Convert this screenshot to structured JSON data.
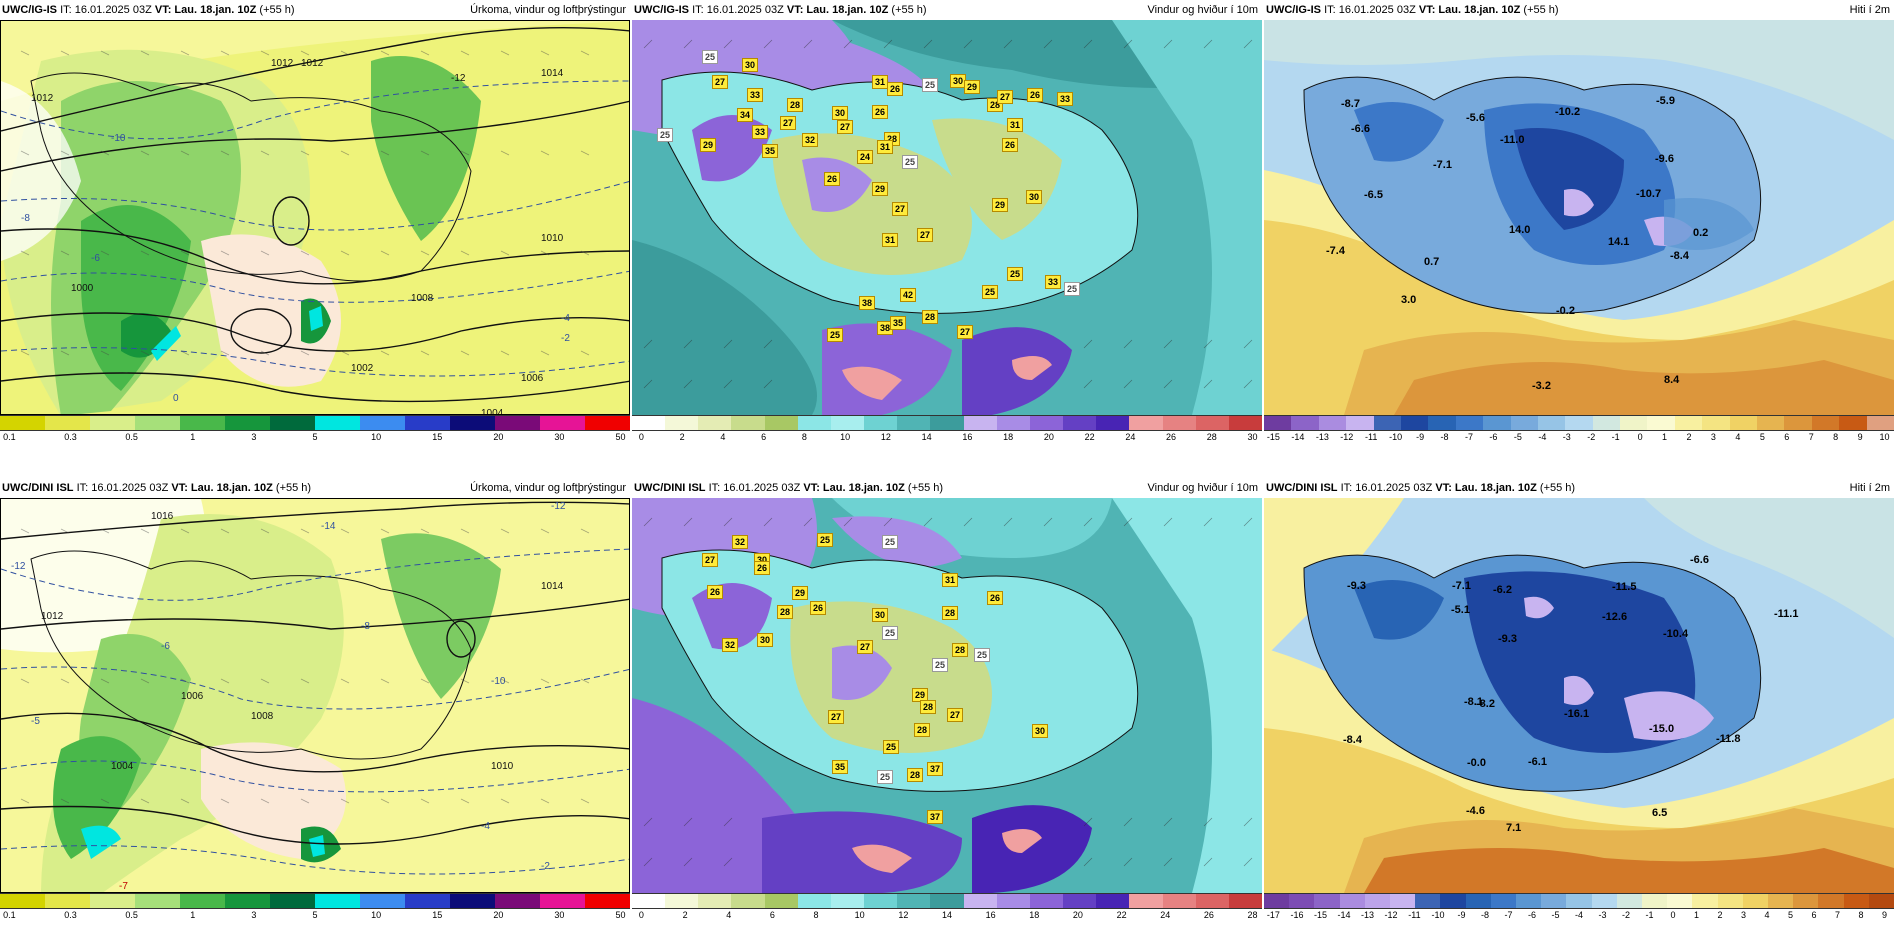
{
  "panels": {
    "p1": {
      "header_model": "UWC/IG-IS",
      "header_it": "IT: 16.01.2025 03Z",
      "header_vt": "VT: Lau. 18.jan. 10Z",
      "header_offset": "(+55 h)",
      "title": "Úrkoma, vindur og loftþrýstingur",
      "colorbar_colors": [
        "#d4d400",
        "#e4e64a",
        "#d9ee8a",
        "#a6e07a",
        "#49b84a",
        "#16963c",
        "#006a3c",
        "#00e6e0",
        "#3c8cf0",
        "#283cc8",
        "#0c0c78",
        "#7a0a78",
        "#e61496",
        "#f00000"
      ],
      "ticks": [
        "0.1",
        "0.3",
        "0.5",
        "1",
        "3",
        "5",
        "10",
        "15",
        "20",
        "30",
        "50"
      ],
      "labels": [
        "1012",
        "1012",
        "1012",
        "1010",
        "1008",
        "1006",
        "1004",
        "1002",
        "1014",
        "-12",
        "-10",
        "-8",
        "-6",
        "-4",
        "-2",
        "0",
        "1000"
      ]
    },
    "p2": {
      "header_model": "UWC/IG-IS",
      "header_it": "IT: 16.01.2025 03Z",
      "header_vt": "VT: Lau. 18.jan. 10Z",
      "header_offset": "(+55 h)",
      "title": "Vindur og hviður í 10m",
      "colorbar_colors": [
        "#ffffff",
        "#f4f8d8",
        "#e4ecb4",
        "#c8dc8c",
        "#a8c864",
        "#8ce6e6",
        "#a8eeee",
        "#6ed2d2",
        "#50b4b4",
        "#3c9c9c",
        "#c8b4f0",
        "#a88ce6",
        "#8c64d8",
        "#6440c4",
        "#4824b4",
        "#f0a0a0",
        "#e68282",
        "#dc6464",
        "#c83c3c"
      ],
      "ticks": [
        "0",
        "2",
        "4",
        "6",
        "8",
        "10",
        "12",
        "14",
        "16",
        "18",
        "20",
        "22",
        "24",
        "26",
        "28",
        "30"
      ],
      "gusts": [
        "25",
        "30",
        "27",
        "33",
        "28",
        "27",
        "31",
        "26",
        "25",
        "28",
        "34",
        "33",
        "25",
        "29",
        "30",
        "35",
        "32",
        "27",
        "26",
        "26",
        "24",
        "28",
        "30",
        "29",
        "27",
        "26",
        "31",
        "33",
        "25",
        "29",
        "31",
        "27",
        "26",
        "30",
        "29",
        "27",
        "31",
        "25",
        "42",
        "38",
        "38",
        "28",
        "27",
        "33",
        "25",
        "25",
        "35",
        "25"
      ]
    },
    "p3": {
      "header_model": "UWC/IG-IS",
      "header_it": "IT: 16.01.2025 03Z",
      "header_vt": "VT: Lau. 18.jan. 10Z",
      "header_offset": "(+55 h)",
      "title": "Hiti í 2m",
      "colorbar_colors": [
        "#6e3ca0",
        "#8c64c8",
        "#aa8ce0",
        "#c8b4f0",
        "#3c64b4",
        "#1e46a0",
        "#2864b4",
        "#3c78c8",
        "#5a96d2",
        "#78aadc",
        "#96c4e6",
        "#b4d8f0",
        "#d2e8e0",
        "#f0f4c8",
        "#fafad2",
        "#f8f0a0",
        "#f4e482",
        "#f0d264",
        "#e6b450",
        "#dc963c",
        "#d27828",
        "#c85a14",
        "#e0a080"
      ],
      "ticks": [
        "-15",
        "-14",
        "-13",
        "-12",
        "-11",
        "-10",
        "-9",
        "-8",
        "-7",
        "-6",
        "-5",
        "-4",
        "-3",
        "-2",
        "-1",
        "0",
        "1",
        "2",
        "3",
        "4",
        "5",
        "6",
        "7",
        "8",
        "9",
        "10"
      ],
      "temps": [
        "-8.7",
        "-6.6",
        "-5.6",
        "-10.2",
        "-5.9",
        "-11.0",
        "-9.6",
        "-6.5",
        "-7.1",
        "-10.7",
        "0.2",
        "-7.4",
        "0.7",
        "14.0",
        "14.1",
        "-8.4",
        "3.0",
        "-0.2",
        "8.4",
        "-3.2"
      ]
    },
    "p4": {
      "header_model": "UWC/DINI ISL",
      "header_it": "IT: 16.01.2025 03Z",
      "header_vt": "VT: Lau. 18.jan. 10Z",
      "header_offset": "(+55 h)",
      "title": "Úrkoma, vindur og loftþrýstingur",
      "colorbar_colors": [
        "#d4d400",
        "#e4e64a",
        "#d9ee8a",
        "#a6e07a",
        "#49b84a",
        "#16963c",
        "#006a3c",
        "#00e6e0",
        "#3c8cf0",
        "#283cc8",
        "#0c0c78",
        "#7a0a78",
        "#e61496",
        "#f00000"
      ],
      "ticks": [
        "0.1",
        "0.3",
        "0.5",
        "1",
        "3",
        "5",
        "10",
        "15",
        "20",
        "30",
        "50"
      ],
      "labels": [
        "1016",
        "-14",
        "-12",
        "-12",
        "-10",
        "-8",
        "-6",
        "-4",
        "-2",
        "1006",
        "1008",
        "1004",
        "1010",
        "1014",
        "1012",
        "-7",
        "-5"
      ]
    },
    "p5": {
      "header_model": "UWC/DINI ISL",
      "header_it": "IT: 16.01.2025 03Z",
      "header_vt": "VT: Lau. 18.jan. 10Z",
      "header_offset": "(+55 h)",
      "title": "Vindur og hviður í 10m",
      "colorbar_colors": [
        "#ffffff",
        "#f4f8d8",
        "#e4ecb4",
        "#c8dc8c",
        "#a8c864",
        "#8ce6e6",
        "#a8eeee",
        "#6ed2d2",
        "#50b4b4",
        "#3c9c9c",
        "#c8b4f0",
        "#a88ce6",
        "#8c64d8",
        "#6440c4",
        "#4824b4",
        "#f0a0a0",
        "#e68282",
        "#dc6464",
        "#c83c3c"
      ],
      "ticks": [
        "0",
        "2",
        "4",
        "6",
        "8",
        "10",
        "12",
        "14",
        "16",
        "18",
        "20",
        "22",
        "24",
        "26",
        "28"
      ],
      "gusts": [
        "32",
        "25",
        "27",
        "30",
        "26",
        "26",
        "31",
        "29",
        "28",
        "26",
        "25",
        "30",
        "28",
        "32",
        "30",
        "27",
        "25",
        "28",
        "25",
        "29",
        "25",
        "28",
        "27",
        "28",
        "26",
        "27",
        "35",
        "25",
        "37",
        "37",
        "25",
        "28",
        "30"
      ]
    },
    "p6": {
      "header_model": "UWC/DINI ISL",
      "header_it": "IT: 16.01.2025 03Z",
      "header_vt": "VT: Lau. 18.jan. 10Z",
      "header_offset": "(+55 h)",
      "title": "Hiti í 2m",
      "colorbar_colors": [
        "#6e3ca0",
        "#7c4cb4",
        "#8c64c8",
        "#aa8ce0",
        "#bca4ea",
        "#c8b4f0",
        "#3c64b4",
        "#1e46a0",
        "#2864b4",
        "#3c78c8",
        "#5a96d2",
        "#78aadc",
        "#96c4e6",
        "#b4d8f0",
        "#d2e8e0",
        "#f0f4c8",
        "#fafad2",
        "#f8f0a0",
        "#f4e482",
        "#f0d264",
        "#e6b450",
        "#dc963c",
        "#d27828",
        "#c85a14",
        "#b44a10"
      ],
      "ticks": [
        "-17",
        "-16",
        "-15",
        "-14",
        "-13",
        "-12",
        "-11",
        "-10",
        "-9",
        "-8",
        "-7",
        "-6",
        "-5",
        "-4",
        "-3",
        "-2",
        "-1",
        "0",
        "1",
        "2",
        "3",
        "4",
        "5",
        "6",
        "7",
        "8",
        "9"
      ],
      "temps": [
        "-6.6",
        "-9.3",
        "-7.1",
        "-6.2",
        "-11.5",
        "-11.1",
        "-5.1",
        "-12.6",
        "-9.3",
        "-10.4",
        "-8.1",
        "-8.2",
        "-8.4",
        "-16.1",
        "-15.0",
        "-11.8",
        "-0.0",
        "-6.1",
        "-4.6",
        "7.1",
        "6.5"
      ]
    }
  }
}
